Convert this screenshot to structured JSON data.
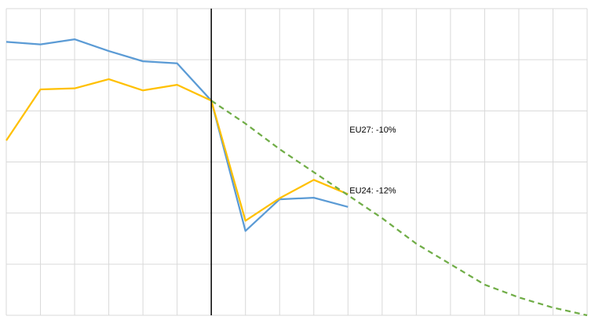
{
  "chart_data": {
    "type": "line",
    "title": "",
    "xlabel": "",
    "ylabel": "",
    "x": [
      0,
      1,
      2,
      3,
      4,
      5,
      6,
      7,
      8,
      9,
      10,
      11,
      12,
      13,
      14,
      15,
      16,
      17
    ],
    "xlim": [
      0,
      17
    ],
    "ylim": [
      -2.2,
      3.8
    ],
    "grid": true,
    "x_gridlines": 18,
    "y_gridlines": 7,
    "series": [
      {
        "color": "#5b9bd5",
        "style": "solid",
        "x": [
          0,
          1,
          2,
          3,
          4,
          5,
          6,
          7,
          8,
          9,
          10
        ],
        "values": [
          3.15,
          3.1,
          3.2,
          2.97,
          2.77,
          2.73,
          2.0,
          -0.55,
          0.07,
          0.1,
          -0.08
        ]
      },
      {
        "color": "#ffc000",
        "style": "solid",
        "x": [
          0,
          1,
          2,
          3,
          4,
          5,
          6,
          7,
          8,
          9,
          10
        ],
        "values": [
          1.22,
          2.22,
          2.24,
          2.42,
          2.2,
          2.31,
          2.0,
          -0.35,
          0.09,
          0.45,
          0.17
        ]
      },
      {
        "color": "#70ad47",
        "style": "dashed",
        "x": [
          6,
          7,
          8,
          9,
          10,
          11,
          12,
          13,
          14,
          15,
          16,
          17
        ],
        "values": [
          2.0,
          1.55,
          1.05,
          0.6,
          0.15,
          -0.3,
          -0.8,
          -1.2,
          -1.6,
          -1.85,
          -2.05,
          -2.2
        ]
      }
    ],
    "vertical_marker_x": 6,
    "annotations": [
      {
        "text": "EU27: -10%",
        "x": 10,
        "y": 1.42
      },
      {
        "text": "EU24: -12%",
        "x": 10,
        "y": 0.23
      }
    ]
  }
}
